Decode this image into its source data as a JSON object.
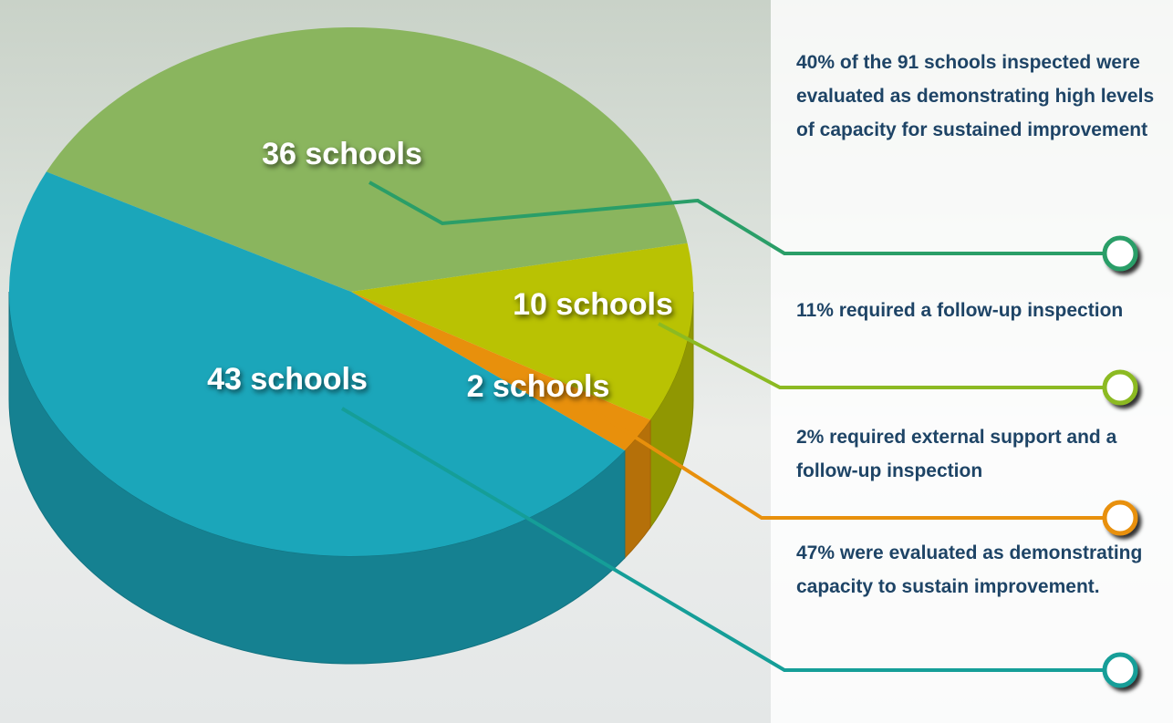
{
  "chart_data": {
    "type": "pie",
    "values": [
      36,
      10,
      2,
      43
    ],
    "value_labels": [
      "36 schools",
      "10 schools",
      "2 schools",
      "43 schools"
    ],
    "colors": [
      "#8ab55e",
      "#b9c203",
      "#e8900c",
      "#1ba6ba"
    ],
    "annotations": [
      "40% of the 91 schools inspected were evaluated as demonstrating high levels of capacity for sustained improvement",
      "11% required a follow-up inspection",
      "2% required external support and a follow-up inspection",
      "47% were evaluated as demonstrating capacity to sustain improvement."
    ]
  }
}
